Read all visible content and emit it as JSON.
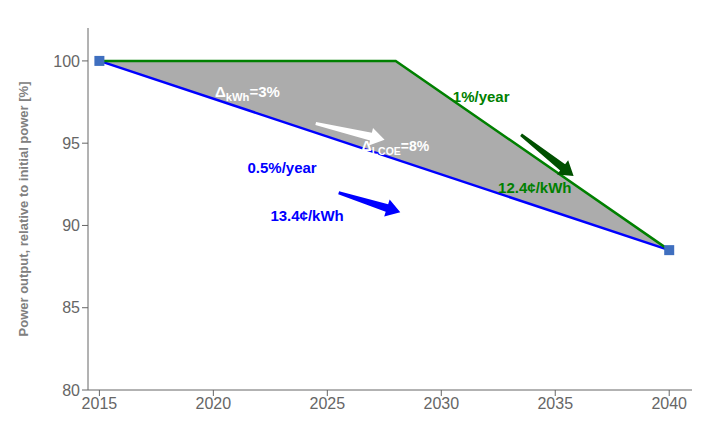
{
  "chart_data": {
    "type": "line",
    "ylabel": "Power output, relative to initial power [%]",
    "x": [
      2015,
      2028,
      2040
    ],
    "xlim": [
      2014.5,
      2041.0
    ],
    "xticks": [
      2015,
      2020,
      2025,
      2030,
      2035,
      2040
    ],
    "ylim": [
      80,
      102
    ],
    "yticks": [
      80,
      85,
      90,
      95,
      100
    ],
    "grid": false,
    "series": [
      {
        "type": "band",
        "color": "#7f7f7f",
        "low": [
          100,
          94.02,
          88.5
        ],
        "high": [
          100,
          100,
          88.5
        ]
      },
      {
        "type": "line",
        "color": "#0000ff",
        "values": [
          100,
          null,
          88.5
        ]
      },
      {
        "type": "line",
        "color": "#008000",
        "values": [
          100,
          100,
          88.5
        ]
      },
      {
        "type": "scatter",
        "marker": "square",
        "color": "#3f6fbf",
        "values": [
          100,
          null,
          88.5
        ]
      }
    ],
    "annotations": [
      {
        "text": "ΔkWh=3%",
        "color": "#ffffff"
      },
      {
        "text": "ΔLCOE=8%",
        "color": "#ffffff"
      },
      {
        "text": "0.5%/year",
        "color": "#0000ff"
      },
      {
        "text": "13.4¢/kWh",
        "color": "#0000ff"
      },
      {
        "text": "1%/year",
        "color": "#008000"
      },
      {
        "text": "12.4¢/kWh",
        "color": "#008000"
      }
    ],
    "arrows": [
      "#ffffff",
      "#0000ff",
      "#005000"
    ]
  }
}
